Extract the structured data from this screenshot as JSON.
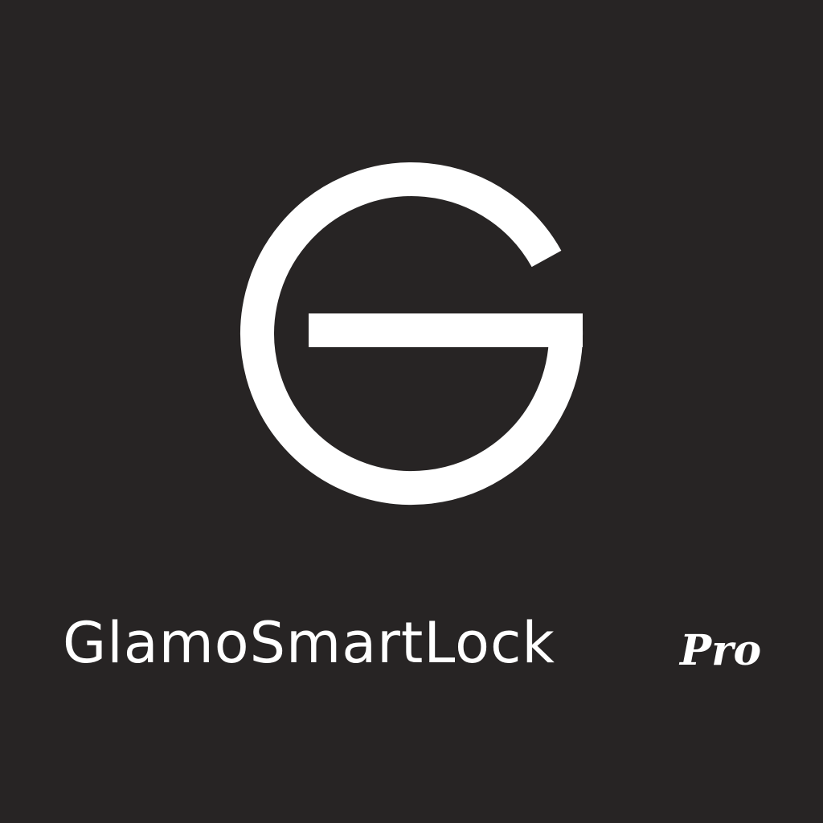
{
  "app": {
    "brand_name": "GlamoSmartLock",
    "edition": "Pro"
  },
  "logo": {
    "icon": "letter-g-logo-icon",
    "color": "#ffffff"
  },
  "colors": {
    "background": "#272424",
    "foreground": "#ffffff"
  }
}
